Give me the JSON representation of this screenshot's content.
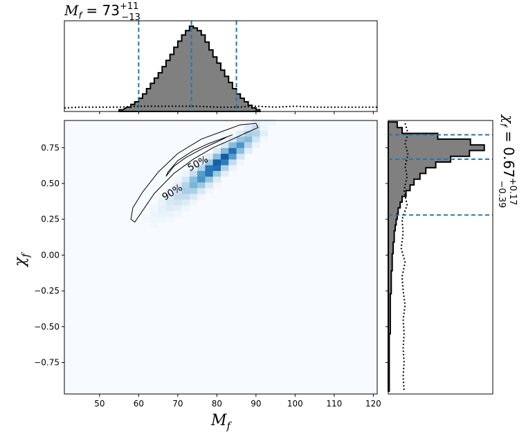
{
  "chart_data": {
    "type": "heatmap",
    "title_top": {
      "symbol": "M",
      "sub": "f",
      "eq": " = 73",
      "sup": "+11",
      "low": "−13"
    },
    "title_right": {
      "symbol": "χ",
      "sub": "f",
      "eq": " = 0.67",
      "sup": "+0.17",
      "low": "−0.39"
    },
    "xlabel": {
      "symbol": "M",
      "sub": "f"
    },
    "ylabel": {
      "symbol": "χ",
      "sub": "f"
    },
    "xlim": [
      41,
      121
    ],
    "ylim": [
      -0.97,
      0.94
    ],
    "xticks": [
      50,
      60,
      70,
      80,
      90,
      100,
      110,
      120
    ],
    "yticks": [
      0.75,
      0.5,
      0.25,
      0.0,
      -0.25,
      -0.5,
      -0.75
    ],
    "xtick_labels": [
      "50",
      "60",
      "70",
      "80",
      "90",
      "100",
      "110",
      "120"
    ],
    "ytick_labels": [
      "0.75",
      "0.50",
      "0.25",
      "0.00",
      "−0.25",
      "−0.50",
      "−0.75"
    ],
    "contour_levels": [
      "50%",
      "90%"
    ],
    "colormap": [
      "#f7fbff",
      "#deebf7",
      "#c6dbef",
      "#9ecae1",
      "#6baed6",
      "#3182bd",
      "#08519c"
    ],
    "quantile_line_color": "#1f77b4",
    "hist_fill_color": "#808080",
    "mass": {
      "bins": [
        [
          55.5,
          0.02
        ],
        [
          57.5,
          0.05
        ],
        [
          58.5,
          0.08
        ],
        [
          59.5,
          0.11
        ],
        [
          60.5,
          0.15
        ],
        [
          61.5,
          0.2
        ],
        [
          62.5,
          0.26
        ],
        [
          63.5,
          0.32
        ],
        [
          64.5,
          0.38
        ],
        [
          65.5,
          0.44
        ],
        [
          66.5,
          0.51
        ],
        [
          67.5,
          0.58
        ],
        [
          68.5,
          0.65
        ],
        [
          69.5,
          0.73
        ],
        [
          70.5,
          0.8
        ],
        [
          71.5,
          0.87
        ],
        [
          72.5,
          0.92
        ],
        [
          73.5,
          0.97
        ],
        [
          74.5,
          0.95
        ],
        [
          75.5,
          0.92
        ],
        [
          76.5,
          0.87
        ],
        [
          77.5,
          0.79
        ],
        [
          78.5,
          0.7
        ],
        [
          79.5,
          0.62
        ],
        [
          80.5,
          0.55
        ],
        [
          81.5,
          0.47
        ],
        [
          82.5,
          0.4
        ],
        [
          83.5,
          0.33
        ],
        [
          84.5,
          0.26
        ],
        [
          85.5,
          0.2
        ],
        [
          86.5,
          0.15
        ],
        [
          87.5,
          0.11
        ],
        [
          88.5,
          0.07
        ],
        [
          89.5,
          0.04
        ],
        [
          90.5,
          0.02
        ]
      ],
      "prior": [
        [
          41,
          0.04
        ],
        [
          45,
          0.05
        ],
        [
          50,
          0.05
        ],
        [
          55,
          0.05
        ],
        [
          60,
          0.06
        ],
        [
          65,
          0.06
        ],
        [
          70,
          0.06
        ],
        [
          75,
          0.06
        ],
        [
          80,
          0.05
        ],
        [
          85,
          0.05
        ],
        [
          90,
          0.06
        ],
        [
          95,
          0.05
        ],
        [
          100,
          0.06
        ],
        [
          105,
          0.05
        ],
        [
          110,
          0.05
        ],
        [
          115,
          0.05
        ],
        [
          121,
          0.05
        ]
      ],
      "quantiles": [
        60,
        73.5,
        85
      ]
    },
    "spin": {
      "bins": [
        [
          0.91,
          0.09
        ],
        [
          0.87,
          0.14
        ],
        [
          0.83,
          0.5
        ],
        [
          0.79,
          0.83
        ],
        [
          0.75,
          0.97
        ],
        [
          0.71,
          0.82
        ],
        [
          0.67,
          0.63
        ],
        [
          0.63,
          0.48
        ],
        [
          0.59,
          0.38
        ],
        [
          0.55,
          0.32
        ],
        [
          0.51,
          0.26
        ],
        [
          0.47,
          0.22
        ],
        [
          0.43,
          0.18
        ],
        [
          0.39,
          0.14
        ],
        [
          0.35,
          0.12
        ],
        [
          0.31,
          0.1
        ],
        [
          0.27,
          0.09
        ],
        [
          0.23,
          0.08
        ],
        [
          0.19,
          0.07
        ],
        [
          0.15,
          0.06
        ],
        [
          0.11,
          0.06
        ],
        [
          0.07,
          0.05
        ],
        [
          0.03,
          0.05
        ],
        [
          -0.01,
          0.04
        ],
        [
          -0.05,
          0.04
        ],
        [
          -0.09,
          0.04
        ],
        [
          -0.13,
          0.03
        ],
        [
          -0.17,
          0.03
        ],
        [
          -0.21,
          0.03
        ],
        [
          -0.25,
          0.03
        ],
        [
          -0.29,
          0.02
        ],
        [
          -0.33,
          0.02
        ],
        [
          -0.37,
          0.02
        ],
        [
          -0.41,
          0.02
        ],
        [
          -0.45,
          0.02
        ],
        [
          -0.49,
          0.02
        ],
        [
          -0.53,
          0.02
        ],
        [
          -0.57,
          0.01
        ],
        [
          -0.61,
          0.01
        ],
        [
          -0.65,
          0.01
        ],
        [
          -0.69,
          0.01
        ],
        [
          -0.73,
          0.01
        ],
        [
          -0.77,
          0.01
        ],
        [
          -0.81,
          0.01
        ],
        [
          -0.85,
          0.01
        ],
        [
          -0.89,
          0.01
        ],
        [
          -0.93,
          0.01
        ]
      ],
      "prior": [
        [
          0.92,
          0.17
        ],
        [
          0.85,
          0.2
        ],
        [
          0.78,
          0.17
        ],
        [
          0.7,
          0.2
        ],
        [
          0.62,
          0.17
        ],
        [
          0.55,
          0.19
        ],
        [
          0.45,
          0.16
        ],
        [
          0.35,
          0.19
        ],
        [
          0.25,
          0.14
        ],
        [
          0.15,
          0.15
        ],
        [
          0.05,
          0.13
        ],
        [
          -0.05,
          0.17
        ],
        [
          -0.15,
          0.14
        ],
        [
          -0.25,
          0.15
        ],
        [
          -0.35,
          0.17
        ],
        [
          -0.45,
          0.15
        ],
        [
          -0.55,
          0.16
        ],
        [
          -0.65,
          0.15
        ],
        [
          -0.75,
          0.16
        ],
        [
          -0.85,
          0.15
        ],
        [
          -0.95,
          0.16
        ]
      ],
      "quantiles": [
        0.28,
        0.67,
        0.84
      ]
    },
    "contour_50": [
      [
        67,
        0.55
      ],
      [
        69,
        0.62
      ],
      [
        72,
        0.68
      ],
      [
        76,
        0.74
      ],
      [
        80,
        0.79
      ],
      [
        83,
        0.83
      ],
      [
        84,
        0.84
      ],
      [
        82,
        0.82
      ],
      [
        78,
        0.78
      ],
      [
        74,
        0.73
      ],
      [
        70,
        0.66
      ],
      [
        67.5,
        0.58
      ]
    ],
    "contour_90": [
      [
        58,
        0.25
      ],
      [
        58.5,
        0.33
      ],
      [
        61,
        0.44
      ],
      [
        65,
        0.58
      ],
      [
        70,
        0.71
      ],
      [
        76,
        0.81
      ],
      [
        82,
        0.87
      ],
      [
        86,
        0.91
      ],
      [
        90,
        0.92
      ],
      [
        90.5,
        0.89
      ],
      [
        88,
        0.86
      ],
      [
        84,
        0.81
      ],
      [
        79,
        0.75
      ],
      [
        74,
        0.67
      ],
      [
        69,
        0.57
      ],
      [
        64,
        0.43
      ],
      [
        61,
        0.31
      ],
      [
        59,
        0.23
      ]
    ],
    "density_ridge": {
      "start": [
        55,
        0.05
      ],
      "end": [
        88,
        0.82
      ],
      "peak": [
        78,
        0.75
      ]
    }
  }
}
